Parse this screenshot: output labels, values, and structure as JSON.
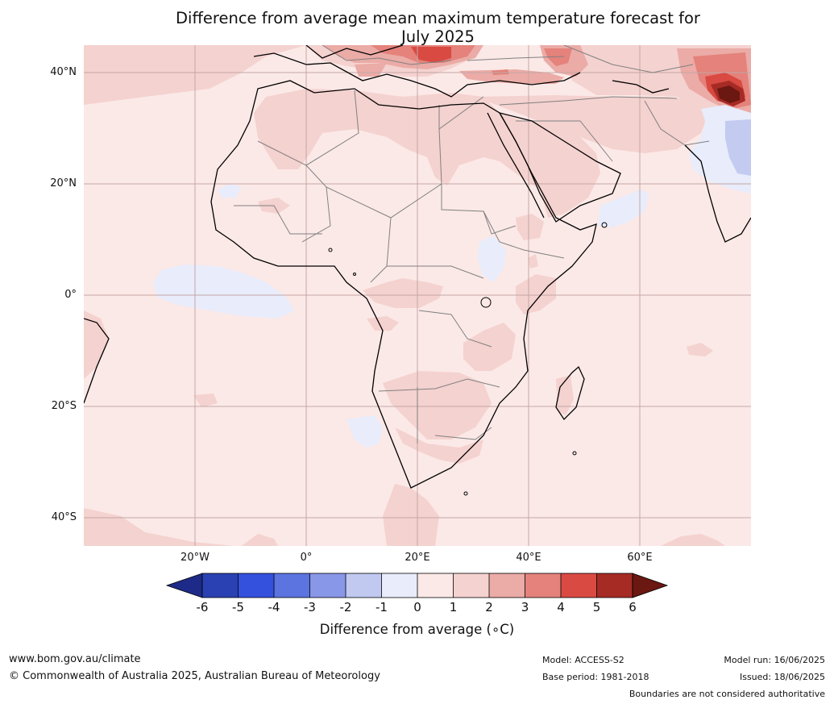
{
  "title": {
    "line1": "Difference from average mean maximum temperature forecast for",
    "line2": "July 2025"
  },
  "map": {
    "region": "Africa and surrounding areas",
    "lat_labels": [
      "40°N",
      "20°N",
      "0°",
      "20°S",
      "40°S"
    ],
    "lon_labels": [
      "20°W",
      "0°",
      "20°E",
      "40°E",
      "60°E"
    ],
    "colors": {
      "background_anomaly_0_to_1": "#fbe9e7",
      "anomaly_1_to_2": "#f4d2cf",
      "anomaly_2_to_3": "#ebaba6",
      "anomaly_3_to_4": "#e4827b",
      "anomaly_4_to_5": "#d94a42",
      "anomaly_5_to_6": "#a62b25",
      "anomaly_above_6": "#6b1712",
      "anomaly_neg1_to_0": "#e8ecfb",
      "anomaly_neg2_to_neg1": "#c3cbf1",
      "coastline": "#000000",
      "borders": "#808080",
      "gridlines": "#c8a8a8"
    }
  },
  "colorbar": {
    "ticks": [
      "-6",
      "-5",
      "-4",
      "-3",
      "-2",
      "-1",
      "0",
      "1",
      "2",
      "3",
      "4",
      "5",
      "6"
    ],
    "colors": [
      "#1d2a87",
      "#2a41b3",
      "#3451de",
      "#5b74e0",
      "#8897e8",
      "#c1c9f1",
      "#e8ecfb",
      "#fbe9e7",
      "#f4d2cf",
      "#ebaba6",
      "#e4827b",
      "#d94a42",
      "#a62b25",
      "#6b1712"
    ],
    "label": "Difference from average (∘C)"
  },
  "footer": {
    "website": "www.bom.gov.au/climate",
    "copyright": "© Commonwealth of Australia 2025, Australian Bureau of Meteorology",
    "model": "Model: ACCESS-S2",
    "base_period": "Base period: 1981-2018",
    "model_run": "Model run: 16/06/2025",
    "issued": "Issued: 18/06/2025",
    "disclaimer": "Boundaries are not considered authoritative"
  }
}
